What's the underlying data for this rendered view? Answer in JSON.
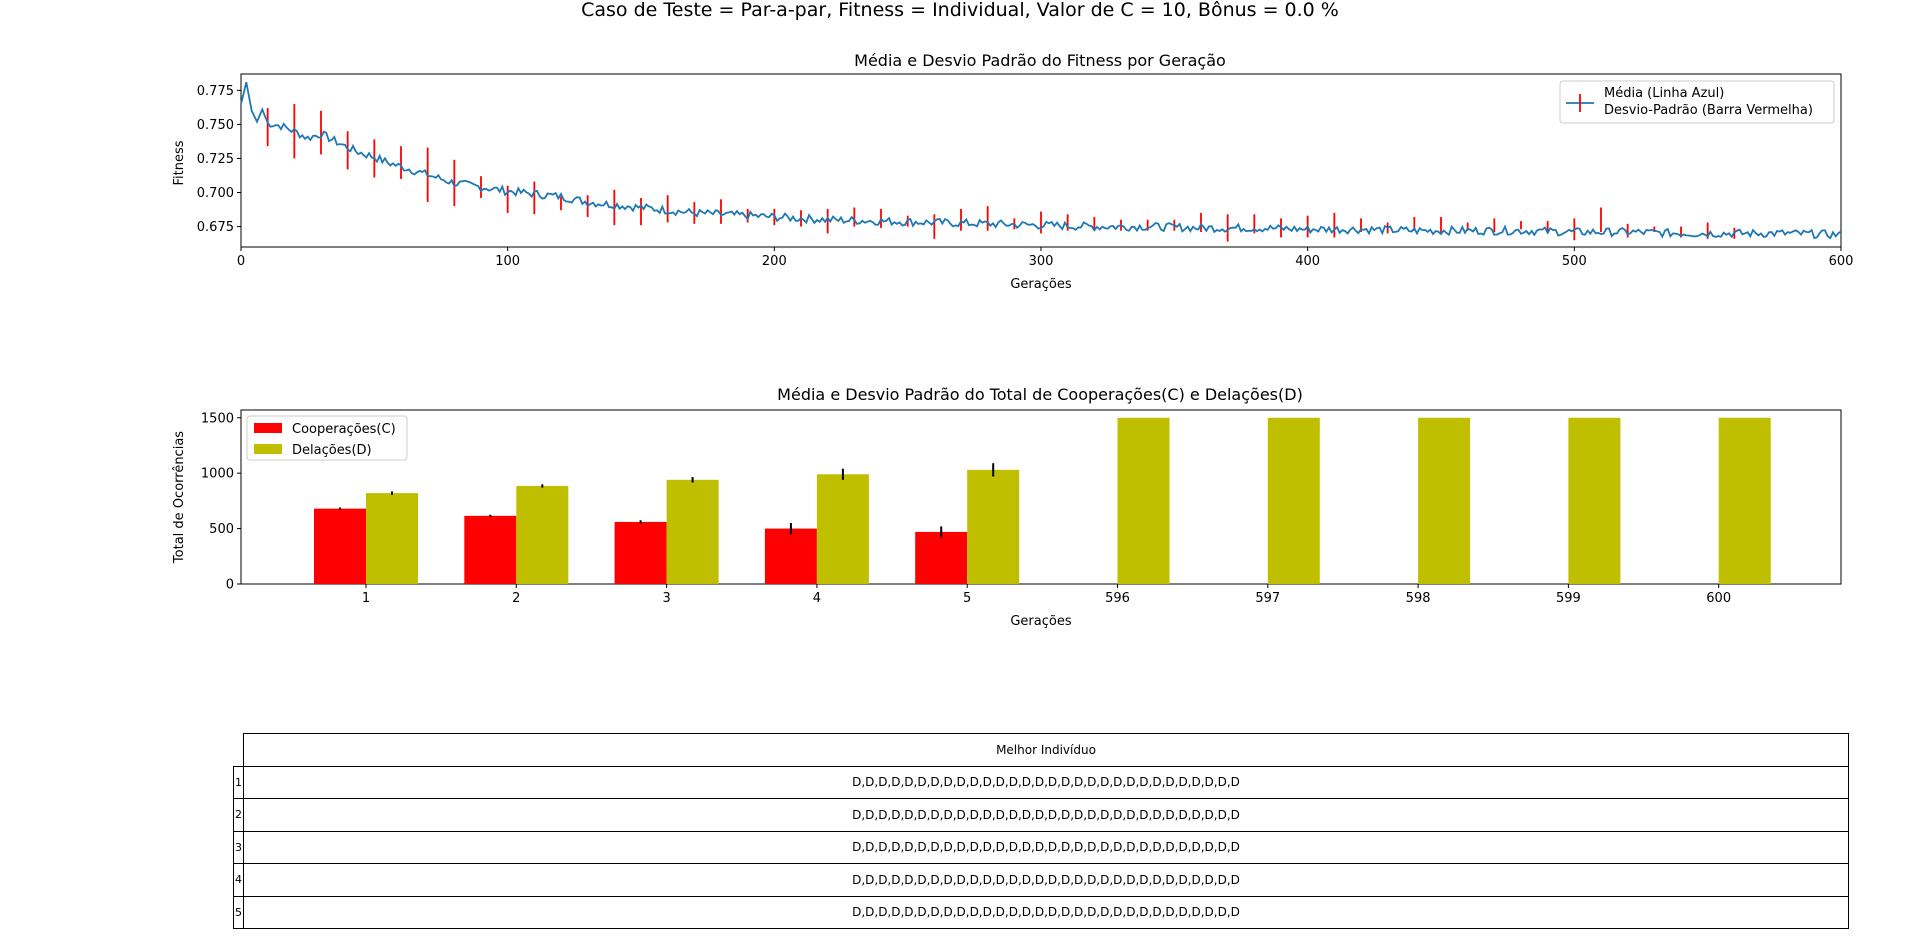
{
  "suptitle": "Caso de Teste = Par-a-par, Fitness = Individual, Valor de C = 10, Bônus = 0.0 %",
  "chart_data": [
    {
      "type": "line",
      "title": "Média e Desvio Padrão do Fitness por Geração",
      "xlabel": "Gerações",
      "ylabel": "Fitness",
      "xlim": [
        0,
        600
      ],
      "ylim": [
        0.66,
        0.787
      ],
      "xticks": [
        "0",
        "100",
        "200",
        "300",
        "400",
        "500",
        "600"
      ],
      "yticks": [
        "0.675",
        "0.700",
        "0.725",
        "0.750",
        "0.775"
      ],
      "legend_position": "upper-right",
      "legend": [
        "Média (Linha Azul)",
        "Desvio-Padrão (Barra Vermelha)"
      ],
      "colors": {
        "mean": "#1f77b4",
        "std": "#ff0000"
      },
      "series": [
        {
          "name": "Média (Linha Azul)",
          "x": [
            0,
            2,
            4,
            6,
            8,
            10,
            15,
            20,
            25,
            30,
            35,
            40,
            45,
            50,
            55,
            60,
            65,
            70,
            75,
            80,
            90,
            100,
            110,
            120,
            130,
            140,
            150,
            160,
            170,
            180,
            200,
            220,
            240,
            260,
            280,
            300,
            320,
            340,
            360,
            380,
            400,
            420,
            440,
            460,
            480,
            500,
            520,
            540,
            560,
            580,
            600
          ],
          "y": [
            0.765,
            0.781,
            0.76,
            0.752,
            0.761,
            0.751,
            0.749,
            0.745,
            0.74,
            0.743,
            0.738,
            0.733,
            0.729,
            0.726,
            0.722,
            0.719,
            0.716,
            0.713,
            0.71,
            0.707,
            0.704,
            0.701,
            0.699,
            0.697,
            0.693,
            0.691,
            0.689,
            0.687,
            0.685,
            0.684,
            0.682,
            0.68,
            0.679,
            0.678,
            0.677,
            0.676,
            0.675,
            0.675,
            0.674,
            0.674,
            0.673,
            0.673,
            0.672,
            0.672,
            0.672,
            0.671,
            0.671,
            0.67,
            0.67,
            0.67,
            0.669
          ]
        },
        {
          "name": "Desvio-Padrão (Barra Vermelha)",
          "x": [
            10,
            20,
            30,
            40,
            50,
            60,
            70,
            80,
            90,
            100,
            110,
            120,
            130,
            140,
            150,
            160,
            170,
            180,
            190,
            200,
            210,
            220,
            230,
            240,
            250,
            260,
            270,
            280,
            290,
            300,
            310,
            320,
            330,
            340,
            350,
            360,
            370,
            380,
            390,
            400,
            410,
            420,
            430,
            440,
            450,
            460,
            470,
            480,
            490,
            500,
            510,
            520,
            530,
            540,
            550,
            560
          ],
          "mean": [
            0.748,
            0.745,
            0.744,
            0.731,
            0.725,
            0.722,
            0.713,
            0.707,
            0.704,
            0.695,
            0.696,
            0.692,
            0.69,
            0.689,
            0.686,
            0.688,
            0.685,
            0.686,
            0.683,
            0.682,
            0.681,
            0.679,
            0.682,
            0.681,
            0.679,
            0.675,
            0.68,
            0.681,
            0.677,
            0.678,
            0.678,
            0.677,
            0.676,
            0.676,
            0.676,
            0.678,
            0.674,
            0.677,
            0.674,
            0.675,
            0.676,
            0.676,
            0.674,
            0.677,
            0.676,
            0.675,
            0.676,
            0.676,
            0.675,
            0.673,
            0.68,
            0.672,
            0.673,
            0.671,
            0.672,
            0.67
          ],
          "std": [
            0.014,
            0.02,
            0.016,
            0.014,
            0.014,
            0.012,
            0.02,
            0.017,
            0.008,
            0.01,
            0.012,
            0.005,
            0.008,
            0.013,
            0.01,
            0.01,
            0.008,
            0.009,
            0.005,
            0.006,
            0.006,
            0.009,
            0.007,
            0.007,
            0.004,
            0.009,
            0.008,
            0.009,
            0.004,
            0.008,
            0.006,
            0.005,
            0.004,
            0.004,
            0.004,
            0.007,
            0.01,
            0.007,
            0.007,
            0.008,
            0.009,
            0.005,
            0.004,
            0.005,
            0.006,
            0.003,
            0.005,
            0.003,
            0.004,
            0.008,
            0.009,
            0.005,
            0.002,
            0.004,
            0.006,
            0.004
          ]
        }
      ]
    },
    {
      "type": "bar",
      "title": "Média e Desvio Padrão do Total de Cooperações(C) e Delações(D)",
      "xlabel": "Gerações",
      "ylabel": "Total de Ocorrências",
      "categories": [
        "1",
        "2",
        "3",
        "4",
        "5",
        "596",
        "597",
        "598",
        "599",
        "600"
      ],
      "ylim": [
        0,
        1570
      ],
      "yticks": [
        "0",
        "500",
        "1000",
        "1500"
      ],
      "legend_position": "upper-left",
      "series": [
        {
          "name": "Cooperações(C)",
          "color": "#ff0000",
          "values": [
            680,
            615,
            560,
            500,
            470,
            0,
            0,
            0,
            0,
            0
          ],
          "errors": [
            10,
            10,
            15,
            50,
            50,
            0,
            0,
            0,
            0,
            0
          ]
        },
        {
          "name": "Delações(D)",
          "color": "#bfbf00",
          "values": [
            820,
            885,
            940,
            990,
            1030,
            1500,
            1500,
            1500,
            1500,
            1500
          ],
          "errors": [
            15,
            15,
            25,
            50,
            60,
            0,
            0,
            0,
            0,
            0
          ]
        }
      ]
    }
  ],
  "table": {
    "header": "Melhor Indivíduo",
    "rows": [
      {
        "label": "1",
        "value": "D,D,D,D,D,D,D,D,D,D,D,D,D,D,D,D,D,D,D,D,D,D,D,D,D,D,D,D,D,D"
      },
      {
        "label": "2",
        "value": "D,D,D,D,D,D,D,D,D,D,D,D,D,D,D,D,D,D,D,D,D,D,D,D,D,D,D,D,D,D"
      },
      {
        "label": "3",
        "value": "D,D,D,D,D,D,D,D,D,D,D,D,D,D,D,D,D,D,D,D,D,D,D,D,D,D,D,D,D,D"
      },
      {
        "label": "4",
        "value": "D,D,D,D,D,D,D,D,D,D,D,D,D,D,D,D,D,D,D,D,D,D,D,D,D,D,D,D,D,D"
      },
      {
        "label": "5",
        "value": "D,D,D,D,D,D,D,D,D,D,D,D,D,D,D,D,D,D,D,D,D,D,D,D,D,D,D,D,D,D"
      }
    ]
  }
}
